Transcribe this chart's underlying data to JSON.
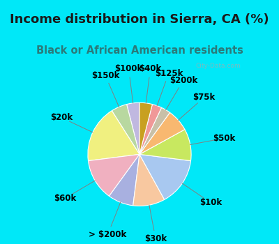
{
  "title": "Income distribution in Sierra, CA (%)",
  "subtitle": "Black or African American residents",
  "watermark": "City-Data.com",
  "bg_cyan": "#00e8f8",
  "bg_chart": "#dff2e8",
  "labels": [
    "$100k",
    "$150k",
    "$20k",
    "$60k",
    "> $200k",
    "$30k",
    "$10k",
    "$50k",
    "$75k",
    "$200k",
    "$125k",
    "$40k"
  ],
  "values": [
    4,
    5,
    18,
    13,
    8,
    10,
    15,
    10,
    7,
    3,
    3,
    4
  ],
  "colors": [
    "#c0b8e0",
    "#b8d8a0",
    "#f0f080",
    "#f0b0c0",
    "#a8b0e0",
    "#f8c8a0",
    "#a8c8f0",
    "#c8e860",
    "#f8b870",
    "#c8c0a8",
    "#f09898",
    "#c8a020"
  ],
  "startangle": 90,
  "label_fontsize": 8.5,
  "title_fontsize": 13,
  "subtitle_fontsize": 10.5,
  "title_color": "#1a1a1a",
  "subtitle_color": "#2a7a7a"
}
